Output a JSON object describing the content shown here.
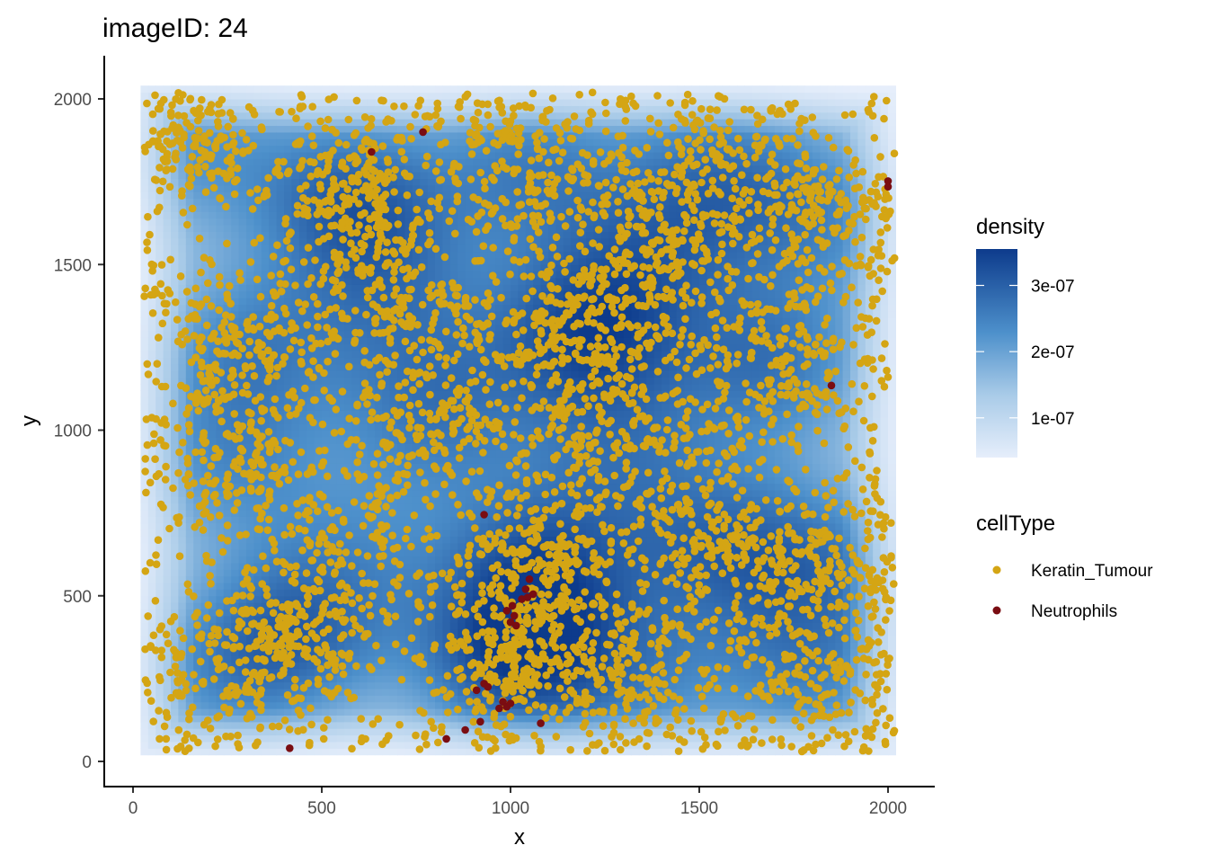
{
  "chart_data": {
    "type": "scatter",
    "title": "imageID: 24",
    "xlabel": "x",
    "ylabel": "y",
    "xlim": [
      -60,
      2060
    ],
    "ylim": [
      -70,
      2130
    ],
    "x_ticks": [
      0,
      500,
      1000,
      1500,
      2000
    ],
    "x_tick_labels": [
      "0",
      "500",
      "1000",
      "1500",
      "2000"
    ],
    "y_ticks": [
      0,
      500,
      1000,
      1500,
      2000
    ],
    "y_tick_labels": [
      "0",
      "500",
      "1000",
      "1500",
      "2000"
    ],
    "grid": false,
    "density_layer": {
      "legend_title": "density",
      "scale_breaks": [
        1e-07,
        2e-07,
        3e-07
      ],
      "scale_labels": [
        "1e-07",
        "2e-07",
        "3e-07"
      ],
      "range": [
        4e-08,
        3.55e-07
      ],
      "color_low": "#e6eefb",
      "color_high": "#0d3b8c",
      "extent_x": [
        20,
        2020
      ],
      "extent_y": [
        20,
        2030
      ],
      "hotspots": [
        {
          "x": 1000,
          "y": 300,
          "density": 3.4e-07
        },
        {
          "x": 1200,
          "y": 1300,
          "density": 3.3e-07
        },
        {
          "x": 580,
          "y": 1700,
          "density": 3.1e-07
        },
        {
          "x": 1080,
          "y": 600,
          "density": 3e-07
        },
        {
          "x": 430,
          "y": 380,
          "density": 2.8e-07
        },
        {
          "x": 1700,
          "y": 1200,
          "density": 2.8e-07
        },
        {
          "x": 1050,
          "y": 1800,
          "density": 2.6e-07
        },
        {
          "x": 300,
          "y": 1250,
          "density": 2.5e-07
        },
        {
          "x": 1550,
          "y": 650,
          "density": 2.6e-07
        },
        {
          "x": 1850,
          "y": 600,
          "density": 2.4e-07
        },
        {
          "x": 1550,
          "y": 1800,
          "density": 2.4e-07
        },
        {
          "x": 800,
          "y": 1050,
          "density": 2.6e-07
        },
        {
          "x": 150,
          "y": 1850,
          "density": 2.3e-07
        },
        {
          "x": 1800,
          "y": 250,
          "density": 2.4e-07
        },
        {
          "x": 250,
          "y": 900,
          "density": 2.3e-07
        },
        {
          "x": 1350,
          "y": 250,
          "density": 2.2e-07
        },
        {
          "x": 1850,
          "y": 1650,
          "density": 2.3e-07
        },
        {
          "x": 700,
          "y": 1400,
          "density": 2.2e-07
        },
        {
          "x": 1400,
          "y": 1550,
          "density": 2.2e-07
        },
        {
          "x": 1300,
          "y": 950,
          "density": 2.2e-07
        },
        {
          "x": 200,
          "y": 250,
          "density": 2e-07
        },
        {
          "x": 600,
          "y": 650,
          "density": 1.9e-07
        }
      ]
    },
    "series": [
      {
        "name": "Keratin_Tumour",
        "color": "#d4a514",
        "point_count": 5200,
        "clusters": [
          {
            "x": 1000,
            "y": 300,
            "sd": 140,
            "n": 320
          },
          {
            "x": 1200,
            "y": 1300,
            "sd": 150,
            "n": 320
          },
          {
            "x": 580,
            "y": 1700,
            "sd": 130,
            "n": 280
          },
          {
            "x": 1080,
            "y": 600,
            "sd": 110,
            "n": 220
          },
          {
            "x": 430,
            "y": 380,
            "sd": 130,
            "n": 240
          },
          {
            "x": 1700,
            "y": 1200,
            "sd": 140,
            "n": 240
          },
          {
            "x": 1050,
            "y": 1800,
            "sd": 150,
            "n": 240
          },
          {
            "x": 300,
            "y": 1250,
            "sd": 130,
            "n": 220
          },
          {
            "x": 1550,
            "y": 650,
            "sd": 140,
            "n": 230
          },
          {
            "x": 1850,
            "y": 600,
            "sd": 120,
            "n": 190
          },
          {
            "x": 1550,
            "y": 1800,
            "sd": 150,
            "n": 220
          },
          {
            "x": 800,
            "y": 1050,
            "sd": 160,
            "n": 260
          },
          {
            "x": 150,
            "y": 1850,
            "sd": 100,
            "n": 150
          },
          {
            "x": 1800,
            "y": 250,
            "sd": 140,
            "n": 200
          },
          {
            "x": 250,
            "y": 900,
            "sd": 120,
            "n": 180
          },
          {
            "x": 1350,
            "y": 250,
            "sd": 130,
            "n": 170
          },
          {
            "x": 1850,
            "y": 1650,
            "sd": 120,
            "n": 180
          },
          {
            "x": 700,
            "y": 1400,
            "sd": 120,
            "n": 160
          },
          {
            "x": 1400,
            "y": 1550,
            "sd": 120,
            "n": 160
          },
          {
            "x": 1300,
            "y": 950,
            "sd": 140,
            "n": 180
          },
          {
            "x": 200,
            "y": 250,
            "sd": 120,
            "n": 140
          },
          {
            "x": 600,
            "y": 650,
            "sd": 120,
            "n": 110
          }
        ],
        "uniform_background": 300
      },
      {
        "name": "Neutrophils",
        "color": "#7a0d12",
        "points": [
          [
            768,
            1900
          ],
          [
            632,
            1840
          ],
          [
            2000,
            1752
          ],
          [
            2000,
            1735
          ],
          [
            1850,
            1135
          ],
          [
            930,
            745
          ],
          [
            1050,
            550
          ],
          [
            1040,
            520
          ],
          [
            1060,
            505
          ],
          [
            1030,
            490
          ],
          [
            1045,
            495
          ],
          [
            990,
            455
          ],
          [
            1010,
            440
          ],
          [
            1000,
            420
          ],
          [
            1015,
            410
          ],
          [
            1005,
            470
          ],
          [
            930,
            235
          ],
          [
            910,
            215
          ],
          [
            940,
            225
          ],
          [
            980,
            180
          ],
          [
            990,
            165
          ],
          [
            1000,
            175
          ],
          [
            970,
            160
          ],
          [
            920,
            120
          ],
          [
            1080,
            115
          ],
          [
            880,
            95
          ],
          [
            830,
            68
          ],
          [
            415,
            40
          ]
        ]
      }
    ],
    "legend": {
      "title": "cellType",
      "position": "right",
      "entries": [
        "Keratin_Tumour",
        "Neutrophils"
      ]
    }
  }
}
